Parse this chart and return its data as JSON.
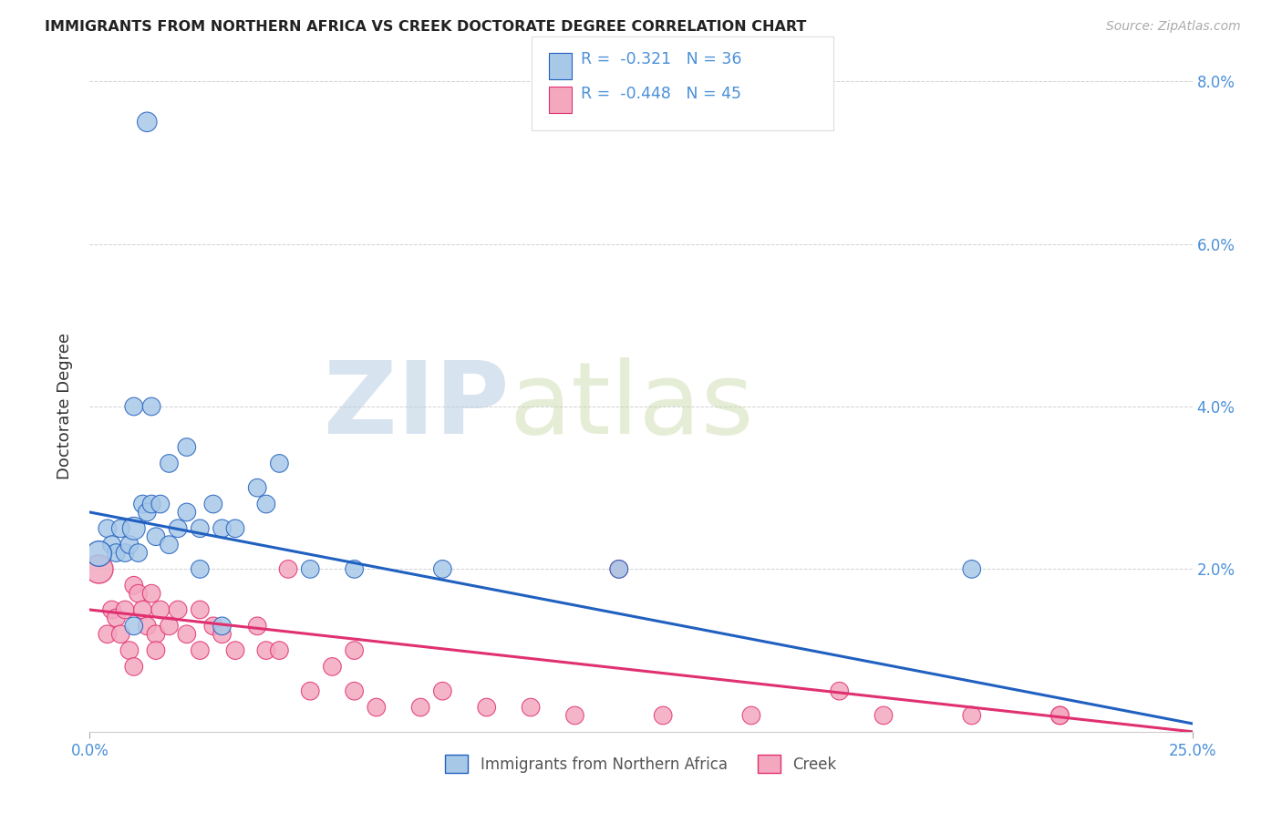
{
  "title": "IMMIGRANTS FROM NORTHERN AFRICA VS CREEK DOCTORATE DEGREE CORRELATION CHART",
  "source": "Source: ZipAtlas.com",
  "ylabel": "Doctorate Degree",
  "legend_label1": "Immigrants from Northern Africa",
  "legend_label2": "Creek",
  "R1": -0.321,
  "N1": 36,
  "R2": -0.448,
  "N2": 45,
  "xlim": [
    0,
    0.25
  ],
  "ylim": [
    0,
    0.08
  ],
  "xticks": [
    0.0,
    0.25
  ],
  "yticks": [
    0.0,
    0.02,
    0.04,
    0.06,
    0.08
  ],
  "xtick_labels": [
    "0.0%",
    "25.0%"
  ],
  "ytick_labels_right": [
    "",
    "2.0%",
    "4.0%",
    "6.0%",
    "8.0%"
  ],
  "grid_yticks": [
    0.02,
    0.04,
    0.06,
    0.08
  ],
  "color_blue": "#a8c8e8",
  "color_pink": "#f4a8c0",
  "line_blue": "#2060c0",
  "line_pink": "#e03070",
  "background_color": "#ffffff",
  "blue_x": [
    0.004,
    0.005,
    0.006,
    0.007,
    0.008,
    0.009,
    0.01,
    0.011,
    0.012,
    0.013,
    0.014,
    0.015,
    0.016,
    0.018,
    0.02,
    0.022,
    0.025,
    0.028,
    0.03,
    0.033,
    0.038,
    0.04,
    0.043,
    0.05,
    0.06,
    0.08,
    0.12,
    0.2,
    0.01,
    0.014,
    0.018,
    0.022,
    0.025,
    0.03,
    0.01,
    0.013
  ],
  "blue_y": [
    0.025,
    0.023,
    0.022,
    0.025,
    0.022,
    0.023,
    0.025,
    0.022,
    0.028,
    0.027,
    0.028,
    0.024,
    0.028,
    0.023,
    0.025,
    0.027,
    0.025,
    0.028,
    0.025,
    0.025,
    0.03,
    0.028,
    0.033,
    0.02,
    0.02,
    0.02,
    0.02,
    0.02,
    0.04,
    0.04,
    0.033,
    0.035,
    0.02,
    0.013,
    0.013,
    0.075
  ],
  "blue_size": [
    50,
    50,
    50,
    50,
    50,
    50,
    80,
    50,
    50,
    50,
    50,
    50,
    50,
    50,
    50,
    50,
    50,
    50,
    50,
    50,
    50,
    50,
    50,
    50,
    50,
    50,
    50,
    50,
    50,
    50,
    50,
    50,
    50,
    50,
    50,
    60
  ],
  "blue_large_x": [
    0.002
  ],
  "blue_large_y": [
    0.022
  ],
  "blue_large_size": [
    400
  ],
  "pink_x": [
    0.004,
    0.005,
    0.006,
    0.007,
    0.008,
    0.009,
    0.01,
    0.011,
    0.012,
    0.013,
    0.014,
    0.015,
    0.016,
    0.018,
    0.02,
    0.022,
    0.025,
    0.028,
    0.03,
    0.033,
    0.038,
    0.04,
    0.043,
    0.05,
    0.055,
    0.06,
    0.065,
    0.075,
    0.08,
    0.09,
    0.1,
    0.11,
    0.13,
    0.15,
    0.18,
    0.2,
    0.22,
    0.01,
    0.015,
    0.025,
    0.045,
    0.06,
    0.12,
    0.17,
    0.22
  ],
  "pink_y": [
    0.012,
    0.015,
    0.014,
    0.012,
    0.015,
    0.01,
    0.018,
    0.017,
    0.015,
    0.013,
    0.017,
    0.012,
    0.015,
    0.013,
    0.015,
    0.012,
    0.01,
    0.013,
    0.012,
    0.01,
    0.013,
    0.01,
    0.01,
    0.005,
    0.008,
    0.005,
    0.003,
    0.003,
    0.005,
    0.003,
    0.003,
    0.002,
    0.002,
    0.002,
    0.002,
    0.002,
    0.002,
    0.008,
    0.01,
    0.015,
    0.02,
    0.01,
    0.02,
    0.005,
    0.002
  ],
  "pink_size": [
    50,
    50,
    50,
    50,
    50,
    50,
    50,
    50,
    50,
    50,
    50,
    50,
    50,
    50,
    50,
    50,
    50,
    50,
    50,
    50,
    50,
    50,
    50,
    50,
    50,
    50,
    50,
    50,
    50,
    50,
    50,
    50,
    50,
    50,
    50,
    50,
    50,
    50,
    50,
    50,
    50,
    50,
    50,
    50,
    50
  ],
  "pink_large_x": [
    0.002
  ],
  "pink_large_y": [
    0.02
  ],
  "pink_large_size": [
    500
  ],
  "trend_blue_x0": 0.0,
  "trend_blue_y0": 0.027,
  "trend_blue_x1": 0.25,
  "trend_blue_y1": 0.001,
  "trend_pink_x0": 0.0,
  "trend_pink_y0": 0.015,
  "trend_pink_x1": 0.25,
  "trend_pink_y1": 0.0
}
